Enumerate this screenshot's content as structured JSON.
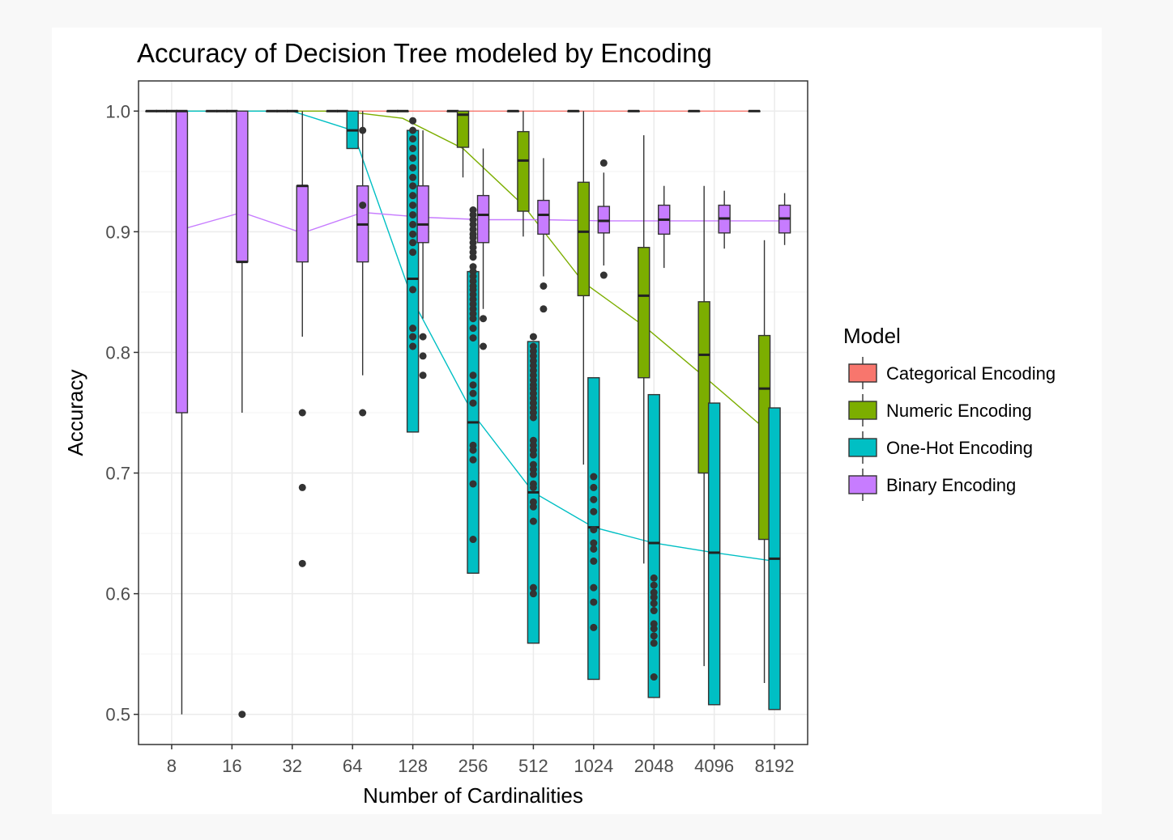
{
  "chart_data": {
    "type": "box",
    "title": "Accuracy of Decision Tree modeled by Encoding",
    "xlabel": "Number of Cardinalities",
    "ylabel": "Accuracy",
    "ylim": [
      0.475,
      1.025
    ],
    "yticks": [
      "0.5",
      "0.6",
      "0.7",
      "0.8",
      "0.9",
      "1.0"
    ],
    "grid": true,
    "categories": [
      "8",
      "16",
      "32",
      "64",
      "128",
      "256",
      "512",
      "1024",
      "2048",
      "4096",
      "8192"
    ],
    "legend": {
      "title": "Model",
      "position": "right"
    },
    "series": [
      {
        "name": "Categorical Encoding",
        "color": "#F8766D",
        "boxes": [
          {
            "cat": "8",
            "min": 1.0,
            "q1": 1.0,
            "median": 1.0,
            "q3": 1.0,
            "max": 1.0,
            "outliers": []
          },
          {
            "cat": "16",
            "min": 1.0,
            "q1": 1.0,
            "median": 1.0,
            "q3": 1.0,
            "max": 1.0,
            "outliers": []
          },
          {
            "cat": "32",
            "min": 1.0,
            "q1": 1.0,
            "median": 1.0,
            "q3": 1.0,
            "max": 1.0,
            "outliers": []
          },
          {
            "cat": "64",
            "min": 1.0,
            "q1": 1.0,
            "median": 1.0,
            "q3": 1.0,
            "max": 1.0,
            "outliers": []
          },
          {
            "cat": "128",
            "min": 1.0,
            "q1": 1.0,
            "median": 1.0,
            "q3": 1.0,
            "max": 1.0,
            "outliers": []
          },
          {
            "cat": "256",
            "min": 1.0,
            "q1": 1.0,
            "median": 1.0,
            "q3": 1.0,
            "max": 1.0,
            "outliers": []
          },
          {
            "cat": "512",
            "min": 1.0,
            "q1": 1.0,
            "median": 1.0,
            "q3": 1.0,
            "max": 1.0,
            "outliers": []
          },
          {
            "cat": "1024",
            "min": 1.0,
            "q1": 1.0,
            "median": 1.0,
            "q3": 1.0,
            "max": 1.0,
            "outliers": []
          },
          {
            "cat": "2048",
            "min": 1.0,
            "q1": 1.0,
            "median": 1.0,
            "q3": 1.0,
            "max": 1.0,
            "outliers": []
          },
          {
            "cat": "4096",
            "min": 1.0,
            "q1": 1.0,
            "median": 1.0,
            "q3": 1.0,
            "max": 1.0,
            "outliers": []
          },
          {
            "cat": "8192",
            "min": 1.0,
            "q1": 1.0,
            "median": 1.0,
            "q3": 1.0,
            "max": 1.0,
            "outliers": []
          }
        ],
        "trend": [
          1.0,
          1.0,
          1.0,
          1.0,
          1.0,
          1.0,
          1.0,
          1.0,
          1.0,
          1.0,
          1.0
        ]
      },
      {
        "name": "Numeric Encoding",
        "color": "#7CAE00",
        "boxes": [
          {
            "cat": "8",
            "min": 1.0,
            "q1": 1.0,
            "median": 1.0,
            "q3": 1.0,
            "max": 1.0,
            "outliers": []
          },
          {
            "cat": "16",
            "min": 1.0,
            "q1": 1.0,
            "median": 1.0,
            "q3": 1.0,
            "max": 1.0,
            "outliers": []
          },
          {
            "cat": "32",
            "min": 1.0,
            "q1": 1.0,
            "median": 1.0,
            "q3": 1.0,
            "max": 1.0,
            "outliers": []
          },
          {
            "cat": "64",
            "min": 1.0,
            "q1": 1.0,
            "median": 1.0,
            "q3": 1.0,
            "max": 1.0,
            "outliers": []
          },
          {
            "cat": "128",
            "min": 1.0,
            "q1": 1.0,
            "median": 1.0,
            "q3": 1.0,
            "max": 1.0,
            "outliers": []
          },
          {
            "cat": "256",
            "min": 0.945,
            "q1": 0.97,
            "median": 0.997,
            "q3": 1.0,
            "max": 1.0,
            "outliers": []
          },
          {
            "cat": "512",
            "min": 0.896,
            "q1": 0.917,
            "median": 0.959,
            "q3": 0.983,
            "max": 1.0,
            "outliers": []
          },
          {
            "cat": "1024",
            "min": 0.707,
            "q1": 0.847,
            "median": 0.9,
            "q3": 0.941,
            "max": 1.0,
            "outliers": []
          },
          {
            "cat": "2048",
            "min": 0.625,
            "q1": 0.779,
            "median": 0.847,
            "q3": 0.887,
            "max": 0.98,
            "outliers": []
          },
          {
            "cat": "4096",
            "min": 0.54,
            "q1": 0.7,
            "median": 0.798,
            "q3": 0.842,
            "max": 0.938,
            "outliers": []
          },
          {
            "cat": "8192",
            "min": 0.526,
            "q1": 0.645,
            "median": 0.77,
            "q3": 0.814,
            "max": 0.893,
            "outliers": []
          }
        ],
        "trend": [
          1.0,
          1.0,
          1.0,
          1.0,
          0.994,
          0.969,
          0.922,
          0.858,
          0.822,
          0.78,
          0.737
        ]
      },
      {
        "name": "One-Hot Encoding",
        "color": "#00BFC4",
        "boxes": [
          {
            "cat": "8",
            "min": 1.0,
            "q1": 1.0,
            "median": 1.0,
            "q3": 1.0,
            "max": 1.0,
            "outliers": []
          },
          {
            "cat": "16",
            "min": 1.0,
            "q1": 1.0,
            "median": 1.0,
            "q3": 1.0,
            "max": 1.0,
            "outliers": []
          },
          {
            "cat": "32",
            "min": 1.0,
            "q1": 1.0,
            "median": 1.0,
            "q3": 1.0,
            "max": 1.0,
            "outliers": []
          },
          {
            "cat": "64",
            "min": 0.969,
            "q1": 0.969,
            "median": 0.984,
            "q3": 1.0,
            "max": 1.0,
            "outliers": []
          },
          {
            "cat": "128",
            "min": 0.734,
            "q1": 0.734,
            "median": 0.861,
            "q3": 0.984,
            "max": 0.984,
            "outliers": [
              0.992,
              0.984,
              0.977,
              0.969,
              0.961,
              0.953,
              0.945,
              0.938,
              0.93,
              0.922,
              0.914,
              0.906,
              0.898,
              0.891,
              0.883,
              0.852,
              0.82,
              0.813,
              0.805
            ]
          },
          {
            "cat": "256",
            "min": 0.617,
            "q1": 0.617,
            "median": 0.742,
            "q3": 0.867,
            "max": 0.867,
            "outliers": [
              0.918,
              0.914,
              0.91,
              0.906,
              0.902,
              0.898,
              0.895,
              0.891,
              0.887,
              0.883,
              0.879,
              0.871,
              0.867,
              0.863,
              0.859,
              0.855,
              0.852,
              0.848,
              0.844,
              0.84,
              0.836,
              0.832,
              0.828,
              0.82,
              0.812,
              0.781,
              0.773,
              0.766,
              0.758,
              0.723,
              0.719,
              0.711,
              0.691,
              0.645
            ]
          },
          {
            "cat": "512",
            "min": 0.559,
            "q1": 0.559,
            "median": 0.684,
            "q3": 0.809,
            "max": 0.809,
            "outliers": [
              0.813,
              0.805,
              0.801,
              0.797,
              0.793,
              0.789,
              0.785,
              0.781,
              0.777,
              0.773,
              0.77,
              0.766,
              0.762,
              0.758,
              0.754,
              0.75,
              0.746,
              0.727,
              0.723,
              0.719,
              0.715,
              0.707,
              0.703,
              0.699,
              0.691,
              0.688,
              0.676,
              0.672,
              0.66,
              0.605,
              0.6
            ]
          },
          {
            "cat": "1024",
            "min": 0.529,
            "q1": 0.529,
            "median": 0.655,
            "q3": 0.779,
            "max": 0.779,
            "outliers": [
              0.697,
              0.688,
              0.678,
              0.668,
              0.653,
              0.642,
              0.637,
              0.627,
              0.605,
              0.593,
              0.572
            ]
          },
          {
            "cat": "2048",
            "min": 0.514,
            "q1": 0.514,
            "median": 0.642,
            "q3": 0.765,
            "max": 0.765,
            "outliers": [
              0.613,
              0.607,
              0.601,
              0.597,
              0.592,
              0.586,
              0.575,
              0.571,
              0.565,
              0.559,
              0.531
            ]
          },
          {
            "cat": "4096",
            "min": 0.508,
            "q1": 0.508,
            "median": 0.634,
            "q3": 0.758,
            "max": 0.758,
            "outliers": []
          },
          {
            "cat": "8192",
            "min": 0.504,
            "q1": 0.504,
            "median": 0.629,
            "q3": 0.754,
            "max": 0.754,
            "outliers": []
          }
        ],
        "trend": [
          1.0,
          1.0,
          1.0,
          0.984,
          0.843,
          0.749,
          0.684,
          0.655,
          0.642,
          0.634,
          0.627
        ]
      },
      {
        "name": "Binary Encoding",
        "color": "#C77CFF",
        "boxes": [
          {
            "cat": "8",
            "min": 0.5,
            "q1": 0.75,
            "median": 1.0,
            "q3": 1.0,
            "max": 1.0,
            "outliers": []
          },
          {
            "cat": "16",
            "min": 0.75,
            "q1": 0.875,
            "median": 0.875,
            "q3": 1.0,
            "max": 1.0,
            "outliers": [
              0.5
            ]
          },
          {
            "cat": "32",
            "min": 0.813,
            "q1": 0.875,
            "median": 0.938,
            "q3": 0.938,
            "max": 1.0,
            "outliers": [
              0.75,
              0.688,
              0.625
            ]
          },
          {
            "cat": "64",
            "min": 0.781,
            "q1": 0.875,
            "median": 0.906,
            "q3": 0.938,
            "max": 1.0,
            "outliers": [
              0.984,
              0.922,
              0.75
            ]
          },
          {
            "cat": "128",
            "min": 0.828,
            "q1": 0.891,
            "median": 0.906,
            "q3": 0.938,
            "max": 0.984,
            "outliers": [
              0.813,
              0.797,
              0.781
            ]
          },
          {
            "cat": "256",
            "min": 0.836,
            "q1": 0.891,
            "median": 0.914,
            "q3": 0.93,
            "max": 0.969,
            "outliers": [
              0.828,
              0.805
            ]
          },
          {
            "cat": "512",
            "min": 0.863,
            "q1": 0.898,
            "median": 0.914,
            "q3": 0.926,
            "max": 0.961,
            "outliers": [
              0.855,
              0.836
            ]
          },
          {
            "cat": "1024",
            "min": 0.872,
            "q1": 0.899,
            "median": 0.909,
            "q3": 0.921,
            "max": 0.949,
            "outliers": [
              0.957,
              0.864
            ]
          },
          {
            "cat": "2048",
            "min": 0.87,
            "q1": 0.898,
            "median": 0.91,
            "q3": 0.922,
            "max": 0.938,
            "outliers": []
          },
          {
            "cat": "4096",
            "min": 0.886,
            "q1": 0.899,
            "median": 0.911,
            "q3": 0.922,
            "max": 0.934,
            "outliers": []
          },
          {
            "cat": "8192",
            "min": 0.889,
            "q1": 0.899,
            "median": 0.911,
            "q3": 0.922,
            "max": 0.932,
            "outliers": []
          }
        ],
        "trend": [
          0.902,
          0.916,
          0.899,
          0.916,
          0.912,
          0.91,
          0.91,
          0.909,
          0.909,
          0.909,
          0.909
        ]
      }
    ]
  }
}
